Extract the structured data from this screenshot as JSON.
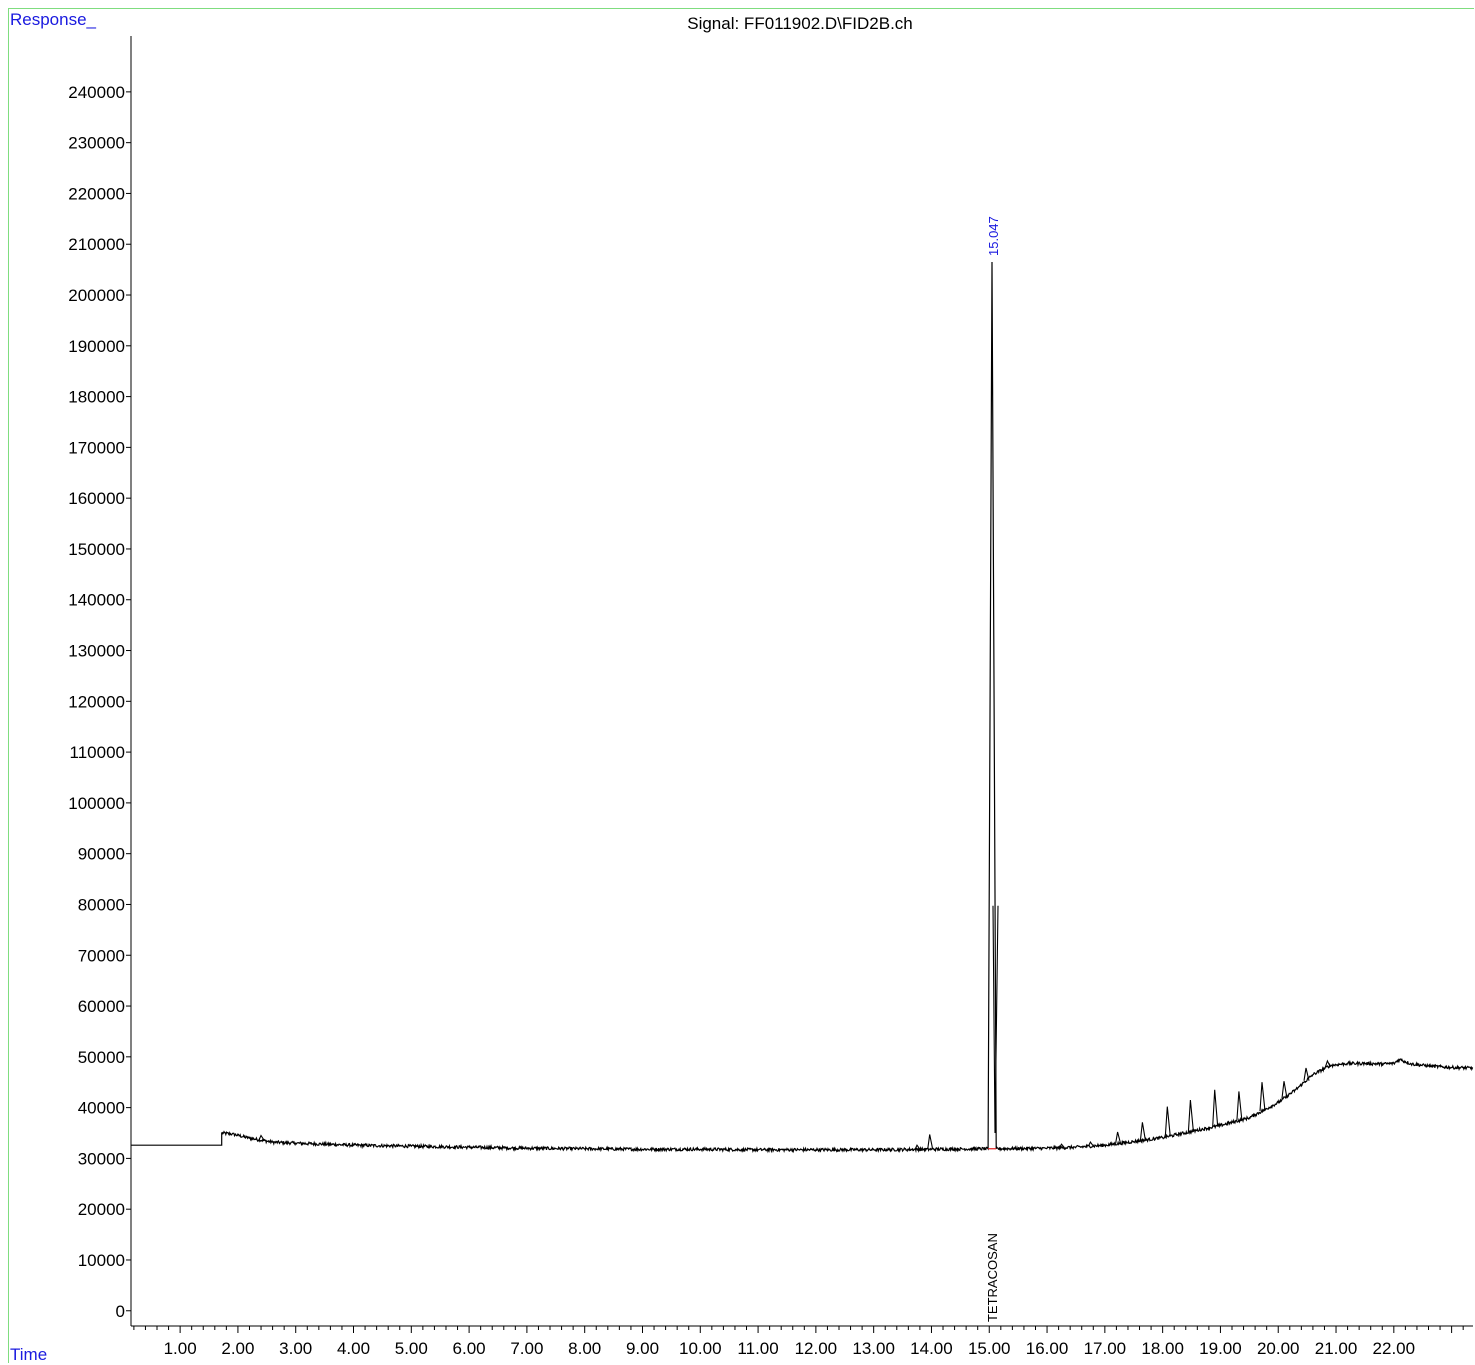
{
  "chart_data": {
    "type": "line",
    "title": "Signal: FF011902.D\\FID2B.ch",
    "ylabel": "Response_",
    "xlabel": "Time",
    "xlim": [
      0.15,
      23.37
    ],
    "ylim": [
      -3000,
      251000
    ],
    "y_ticks": [
      0,
      10000,
      20000,
      30000,
      40000,
      50000,
      60000,
      70000,
      80000,
      90000,
      100000,
      110000,
      120000,
      130000,
      140000,
      150000,
      160000,
      170000,
      180000,
      190000,
      200000,
      210000,
      220000,
      230000,
      240000
    ],
    "x_ticks": [
      "1.00",
      "2.00",
      "3.00",
      "4.00",
      "5.00",
      "6.00",
      "7.00",
      "8.00",
      "9.00",
      "10.00",
      "11.00",
      "12.00",
      "13.00",
      "14.00",
      "15.00",
      "16.00",
      "17.00",
      "18.00",
      "19.00",
      "20.00",
      "21.00",
      "22.00"
    ],
    "x_minor_step": 0.2,
    "grid": false,
    "series": [
      {
        "color": "#000000",
        "x": [
          0.15,
          1.72,
          1.72,
          1.9,
          2.2,
          2.6,
          3.0,
          4.0,
          5.0,
          6.0,
          7.0,
          8.0,
          9.0,
          10.0,
          11.0,
          12.0,
          13.0,
          14.0,
          14.98,
          15.047,
          15.12,
          16.0,
          16.5,
          17.0,
          17.5,
          18.0,
          18.5,
          19.0,
          19.5,
          20.0,
          20.3,
          20.6,
          20.9,
          21.2,
          21.5,
          21.8,
          22.0,
          22.1,
          22.3,
          22.6,
          23.0,
          23.37
        ],
        "y": [
          32600,
          32600,
          35000,
          34800,
          34000,
          33200,
          33000,
          32600,
          32400,
          32200,
          32000,
          31900,
          31800,
          31800,
          31700,
          31700,
          31700,
          31800,
          31900,
          206500,
          31900,
          32000,
          32200,
          32600,
          33300,
          34100,
          35300,
          36500,
          38000,
          41000,
          43500,
          46500,
          48300,
          48700,
          48700,
          48600,
          48700,
          49500,
          48600,
          48200,
          47900,
          47800
        ]
      }
    ],
    "small_peaks": [
      {
        "x": 2.4,
        "y": 34500
      },
      {
        "x": 13.75,
        "y": 32600
      },
      {
        "x": 13.97,
        "y": 34700
      },
      {
        "x": 15.1,
        "y": 35000
      },
      {
        "x": 16.25,
        "y": 32800
      },
      {
        "x": 16.75,
        "y": 33200
      },
      {
        "x": 17.22,
        "y": 35200
      },
      {
        "x": 17.65,
        "y": 37100
      },
      {
        "x": 18.08,
        "y": 40200
      },
      {
        "x": 18.48,
        "y": 41500
      },
      {
        "x": 18.9,
        "y": 43500
      },
      {
        "x": 19.32,
        "y": 43200
      },
      {
        "x": 19.72,
        "y": 45000
      },
      {
        "x": 20.1,
        "y": 45200
      },
      {
        "x": 20.48,
        "y": 47800
      },
      {
        "x": 20.85,
        "y": 49200
      }
    ],
    "annotations": [
      {
        "text": "15.047",
        "x": 15.047,
        "y": 206500,
        "color": "#1a1adf"
      },
      {
        "text": "TETRACOSAN",
        "x": 15.047,
        "color": "#000000"
      }
    ]
  }
}
